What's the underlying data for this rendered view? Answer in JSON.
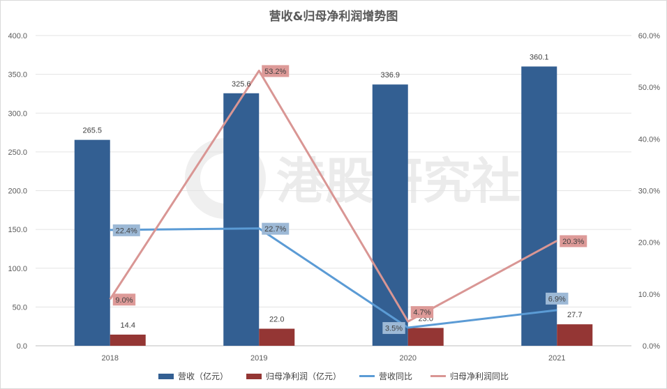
{
  "chart_data": {
    "type": "bar",
    "title": "营收&归母净利润增势图",
    "categories": [
      "2018",
      "2019",
      "2020",
      "2021"
    ],
    "y_left": {
      "ylim": [
        0,
        400
      ],
      "ticks": [
        "0.0",
        "50.0",
        "100.0",
        "150.0",
        "200.0",
        "250.0",
        "300.0",
        "350.0",
        "400.0"
      ]
    },
    "y_right": {
      "ylim": [
        0,
        60
      ],
      "ticks": [
        "0.0%",
        "10.0%",
        "20.0%",
        "30.0%",
        "40.0%",
        "50.0%",
        "60.0%"
      ]
    },
    "series": [
      {
        "name": "营收（亿元）",
        "type": "bar",
        "axis": "left",
        "color": "#335f92",
        "values": [
          265.5,
          325.6,
          336.9,
          360.1
        ],
        "labels": [
          "265.5",
          "325.6",
          "336.9",
          "360.1"
        ]
      },
      {
        "name": "归母净利润（亿元）",
        "type": "bar",
        "axis": "left",
        "color": "#943634",
        "values": [
          14.4,
          22.0,
          23.0,
          27.7
        ],
        "labels": [
          "14.4",
          "22.0",
          "23.0",
          "27.7"
        ]
      },
      {
        "name": "营收同比",
        "type": "line",
        "axis": "right",
        "color": "#5b9bd5",
        "label_bg": "#9db9d6",
        "values": [
          22.4,
          22.7,
          3.5,
          6.9
        ],
        "labels": [
          "22.4%",
          "22.7%",
          "3.5%",
          "6.9%"
        ]
      },
      {
        "name": "归母净利润同比",
        "type": "line",
        "axis": "right",
        "color": "#d99694",
        "label_bg": "#dd9a98",
        "values": [
          9.0,
          53.2,
          4.7,
          20.3
        ],
        "labels": [
          "9.0%",
          "53.2%",
          "4.7%",
          "20.3%"
        ]
      }
    ],
    "grid": true,
    "legend_position": "bottom",
    "watermark": "港股研究社"
  }
}
